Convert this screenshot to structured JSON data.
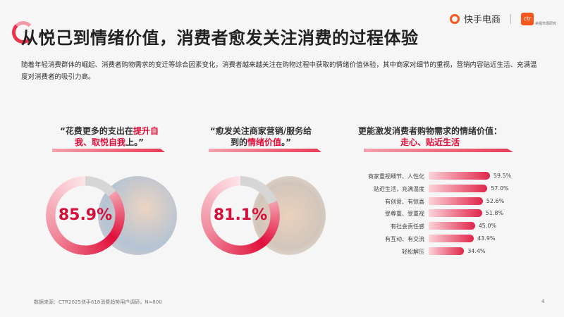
{
  "header": {
    "title": "从悦己到情绪价值，消费者愈发关注消费的过程体验",
    "intro": "随着年轻消费群体的崛起、消费者购物需求的变迁等综合因素变化，消费者越来越关注在购物过程中获取的情绪价值体验，其中商家对细节的重视，营销内容贴近生活、充满温度对消费者的吸引力高。",
    "brand": "快手电商",
    "ctr_logo": "ctr",
    "ctr_tagline": "央视市场研究"
  },
  "stats": [
    {
      "quote_plain": "“花费更多的支出在",
      "quote_hl": "提升自我、取悦自我",
      "quote_end": "上。”",
      "value": "85.9%",
      "fraction": 0.859
    },
    {
      "quote_plain": "“愈发关注商家营销/服务给到的",
      "quote_hl": "情绪价值",
      "quote_end": "。”",
      "value": "81.1%",
      "fraction": 0.811
    }
  ],
  "chart_data": {
    "type": "bar",
    "title": "更能激发消费者购物需求的情绪价值：",
    "subtitle": "走心、贴近生活",
    "categories": [
      "商家重视细节、人性化",
      "贴近生活，充满温度",
      "有创意、有惊喜",
      "受尊重、受重视",
      "有社会责任感",
      "有互动、有交流",
      "轻松解压"
    ],
    "values": [
      59.5,
      57.0,
      52.6,
      51.8,
      45.0,
      43.9,
      34.4
    ],
    "value_labels": [
      "59.5%",
      "57.0%",
      "52.6%",
      "51.8%",
      "45.0%",
      "43.9%",
      "34.4%"
    ],
    "orientation": "horizontal",
    "colors": {
      "start": "#fbd3d9",
      "end": "#e0264a"
    }
  },
  "footer": {
    "source": "数据来源：CTR2025快手618消费趋势用户调研，N=800",
    "page": "4"
  },
  "colors": {
    "accent": "#e0103a",
    "brand": "#f5571f"
  }
}
